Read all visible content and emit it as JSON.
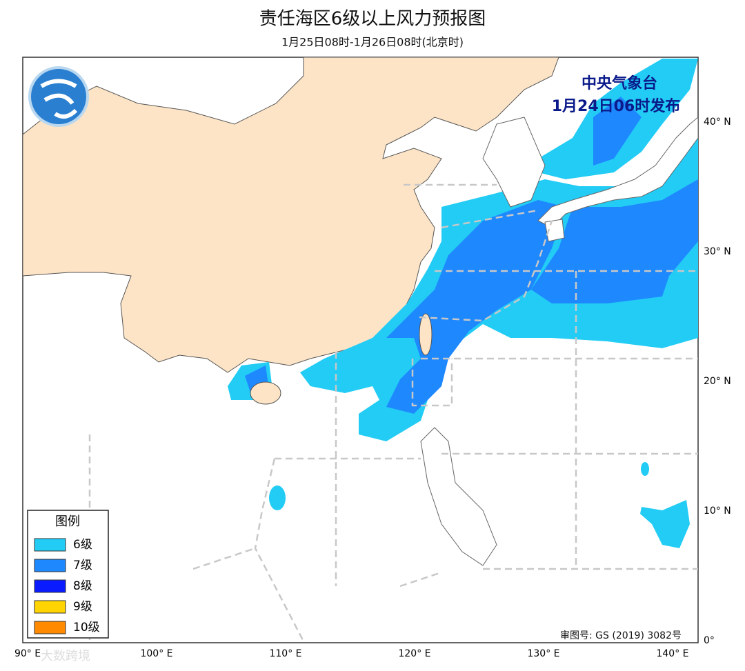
{
  "header": {
    "title": "责任海区6级以上风力预报图",
    "subtitle": "1月25日08时-1月26日08时(北京时)"
  },
  "issuer": [
    "中央气象台",
    "1月24日06时发布"
  ],
  "legend": {
    "title": "图例",
    "items": [
      {
        "label": "6级",
        "color": "#22ccf5"
      },
      {
        "label": "7级",
        "color": "#1e88ff"
      },
      {
        "label": "8级",
        "color": "#0a1cff"
      },
      {
        "label": "9级",
        "color": "#ffd400"
      },
      {
        "label": "10级",
        "color": "#ff8a00"
      }
    ]
  },
  "map": {
    "lat_labels": [
      "40° N",
      "30° N",
      "20° N",
      "10° N",
      "0°"
    ],
    "lon_labels": [
      "90° E",
      "100° E",
      "110° E",
      "120° E",
      "130° E",
      "140° E"
    ]
  },
  "footer": {
    "approval": "审图号: GS (2019) 3082号",
    "watermark": "大数跨境"
  }
}
